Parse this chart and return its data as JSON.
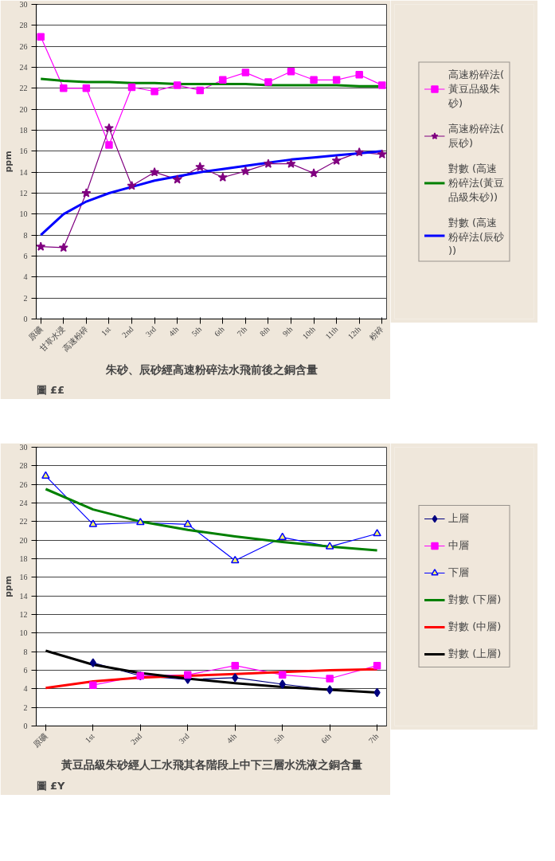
{
  "chart_data": [
    {
      "type": "line",
      "xlabel": "朱砂、辰砂經高速粉碎法水飛前後之銅含量",
      "ylabel": "ppm",
      "categories": [
        "原礦",
        "甘草水浸",
        "高速粉碎",
        "1st",
        "2nd",
        "3rd",
        "4th",
        "5th",
        "6th",
        "7th",
        "8th",
        "9th",
        "10th",
        "11th",
        "12th",
        "粉碎"
      ],
      "series": [
        {
          "name": "高速粉碎法(黃豆品級朱砂)",
          "color": "#ff00ff",
          "marker": "square",
          "values": [
            26.9,
            22.0,
            22.0,
            16.6,
            22.1,
            21.7,
            22.3,
            21.8,
            22.8,
            23.5,
            22.6,
            23.6,
            22.8,
            22.8,
            23.3,
            22.3
          ]
        },
        {
          "name": "高速粉碎法(辰砂)",
          "color": "#800080",
          "marker": "star",
          "values": [
            6.9,
            6.8,
            12.0,
            18.2,
            12.7,
            14.0,
            13.3,
            14.5,
            13.5,
            14.1,
            14.8,
            14.8,
            13.9,
            15.1,
            15.9,
            15.7
          ]
        },
        {
          "name": "對數 (高速粉碎法(黃豆品級朱砂))",
          "color": "#008000",
          "marker": "none",
          "values": [
            22.9,
            22.7,
            22.6,
            22.6,
            22.5,
            22.5,
            22.4,
            22.4,
            22.4,
            22.4,
            22.3,
            22.3,
            22.3,
            22.3,
            22.2,
            22.2
          ]
        },
        {
          "name": "對數 (高速粉碎法(辰砂))",
          "color": "#0000ff",
          "marker": "none",
          "values": [
            8.0,
            10.0,
            11.2,
            12.0,
            12.6,
            13.2,
            13.6,
            14.0,
            14.3,
            14.6,
            14.9,
            15.2,
            15.4,
            15.6,
            15.8,
            16.0
          ]
        }
      ],
      "ylim": [
        0,
        30
      ],
      "yticks": [
        0,
        2,
        4,
        6,
        8,
        10,
        12,
        14,
        16,
        18,
        20,
        22,
        24,
        26,
        28,
        30
      ],
      "grid": "y",
      "legend": "right",
      "annotations": [
        "圖 ££"
      ]
    },
    {
      "type": "line",
      "xlabel": "黃豆品級朱砂經人工水飛其各階段上中下三層水洗液之銅含量",
      "ylabel": "ppm",
      "categories": [
        "原礦",
        "1st",
        "2nd",
        "3rd",
        "4th",
        "5th",
        "6th",
        "7th"
      ],
      "series": [
        {
          "name": "上層",
          "color": "#000080",
          "marker": "diamond",
          "values": [
            null,
            6.8,
            5.4,
            5.0,
            5.2,
            4.5,
            3.9,
            3.6
          ]
        },
        {
          "name": "中層",
          "color": "#ff00ff",
          "marker": "square",
          "values": [
            null,
            4.4,
            5.4,
            5.5,
            6.5,
            5.5,
            5.1,
            6.5
          ]
        },
        {
          "name": "下層",
          "color": "#0000ff",
          "marker": "triangle",
          "values": [
            26.9,
            21.7,
            21.9,
            21.7,
            17.8,
            20.3,
            19.3,
            20.7
          ]
        },
        {
          "name": "對數 (下層)",
          "color": "#008000",
          "marker": "none",
          "values": [
            25.5,
            23.3,
            22.0,
            21.1,
            20.4,
            19.8,
            19.3,
            18.9
          ]
        },
        {
          "name": "對數 (中層)",
          "color": "#ff0000",
          "marker": "none",
          "values": [
            4.1,
            4.8,
            5.2,
            5.4,
            5.6,
            5.8,
            6.0,
            6.1
          ]
        },
        {
          "name": "對數 (上層)",
          "color": "#000000",
          "marker": "none",
          "values": [
            8.1,
            6.6,
            5.7,
            5.1,
            4.6,
            4.2,
            3.9,
            3.6
          ]
        }
      ],
      "ylim": [
        0,
        30
      ],
      "yticks": [
        0,
        2,
        4,
        6,
        8,
        10,
        12,
        14,
        16,
        18,
        20,
        22,
        24,
        26,
        28,
        30
      ],
      "grid": "y",
      "legend": "right",
      "annotations": [
        "圖 £Y"
      ]
    }
  ]
}
